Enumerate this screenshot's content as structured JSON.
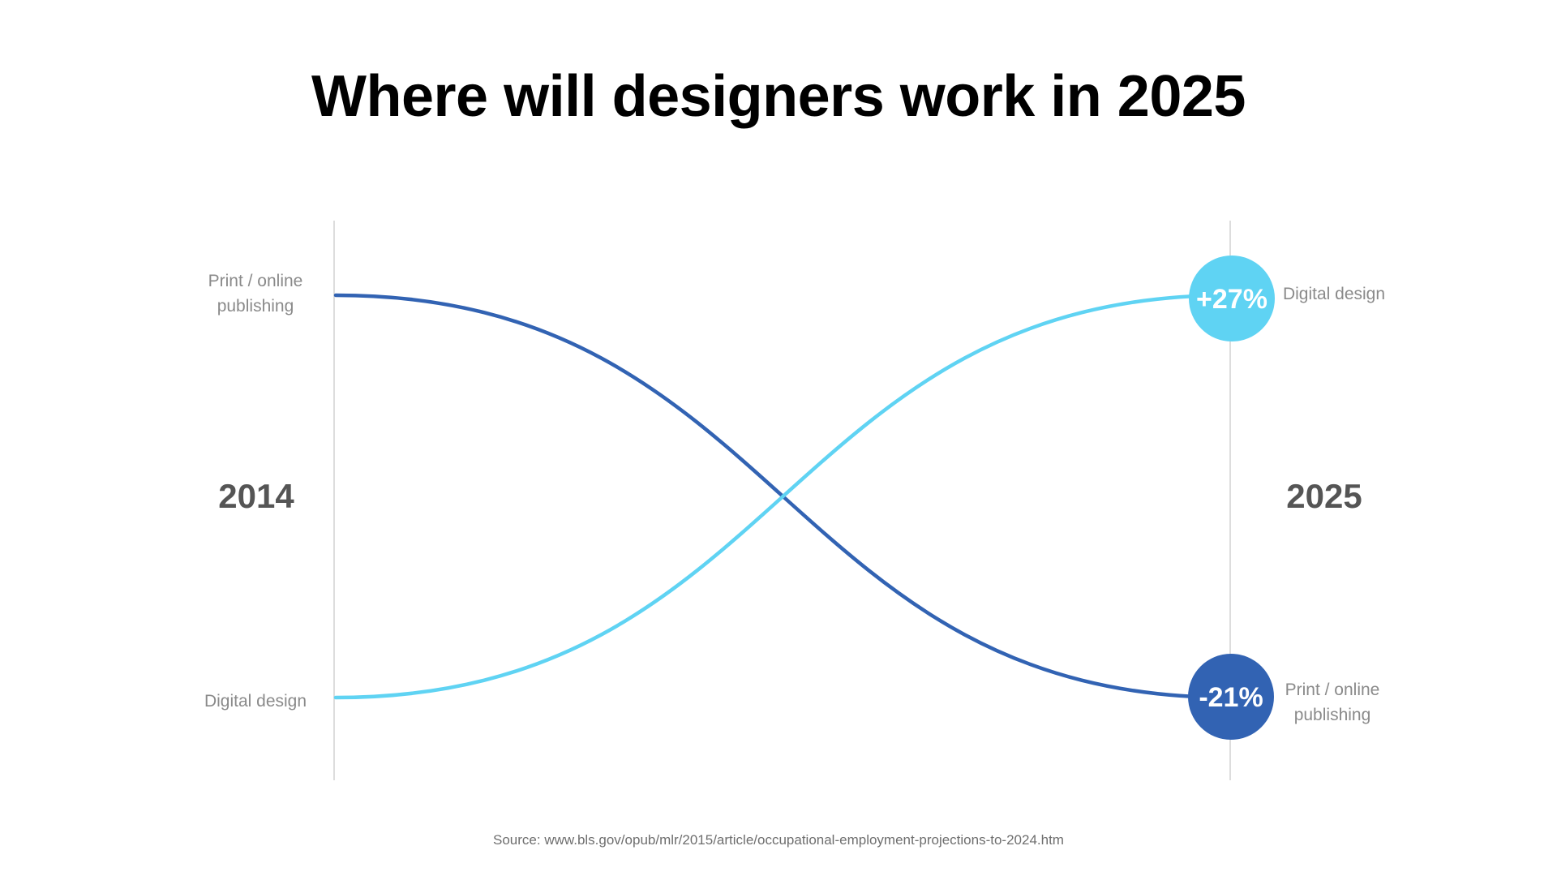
{
  "title": "Where will designers work in 2025",
  "source": "Source: www.bls.gov/opub/mlr/2015/article/occupational-employment-projections-to-2024.htm",
  "chart_data": {
    "type": "line",
    "x": [
      "2014",
      "2025"
    ],
    "series": [
      {
        "name": "Print / online publishing",
        "start_label": "Print / online\npublishing",
        "end_label": "Print / online\npublishing",
        "rank": [
          "top",
          "bottom"
        ],
        "change": "-21%",
        "color": "#3263b3"
      },
      {
        "name": "Digital design",
        "start_label": "Digital design",
        "end_label": "Digital design",
        "rank": [
          "bottom",
          "top"
        ],
        "change": "+27%",
        "color": "#5fd3f3"
      }
    ]
  }
}
